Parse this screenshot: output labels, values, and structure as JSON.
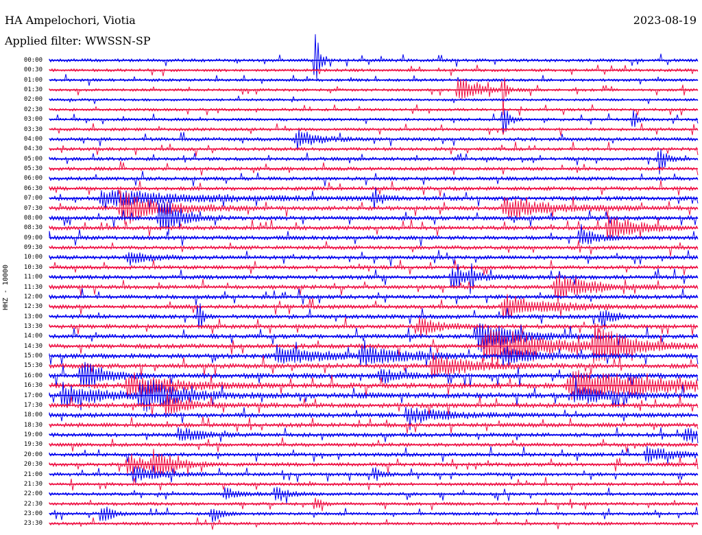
{
  "header": {
    "station": "HA Ampelochori, Viotia",
    "filter": "Applied filter: WWSSN-SP",
    "date": "2023-08-19",
    "channel": "HHZ - 10000"
  },
  "colors": {
    "even_trace": "#0000ee",
    "odd_trace": "#ee1144",
    "background": "#ffffff",
    "text": "#000000"
  },
  "rows": [
    {
      "time": "00:00",
      "level": 0.45
    },
    {
      "time": "00:30",
      "level": 0.35
    },
    {
      "time": "01:00",
      "level": 0.35
    },
    {
      "time": "01:30",
      "level": 0.3
    },
    {
      "time": "02:00",
      "level": 0.25
    },
    {
      "time": "02:30",
      "level": 0.3
    },
    {
      "time": "03:00",
      "level": 0.35
    },
    {
      "time": "03:30",
      "level": 0.45
    },
    {
      "time": "04:00",
      "level": 0.6
    },
    {
      "time": "04:30",
      "level": 0.55
    },
    {
      "time": "05:00",
      "level": 0.6
    },
    {
      "time": "05:30",
      "level": 0.6
    },
    {
      "time": "06:00",
      "level": 0.7
    },
    {
      "time": "06:30",
      "level": 0.75
    },
    {
      "time": "07:00",
      "level": 0.9
    },
    {
      "time": "07:30",
      "level": 0.95
    },
    {
      "time": "08:00",
      "level": 0.9
    },
    {
      "time": "08:30",
      "level": 0.85
    },
    {
      "time": "09:00",
      "level": 0.8
    },
    {
      "time": "09:30",
      "level": 0.75
    },
    {
      "time": "10:00",
      "level": 0.8
    },
    {
      "time": "10:30",
      "level": 0.75
    },
    {
      "time": "11:00",
      "level": 0.85
    },
    {
      "time": "11:30",
      "level": 0.85
    },
    {
      "time": "12:00",
      "level": 0.8
    },
    {
      "time": "12:30",
      "level": 0.85
    },
    {
      "time": "13:00",
      "level": 0.85
    },
    {
      "time": "13:30",
      "level": 0.9
    },
    {
      "time": "14:00",
      "level": 0.9
    },
    {
      "time": "14:30",
      "level": 1.0
    },
    {
      "time": "15:00",
      "level": 1.1
    },
    {
      "time": "15:30",
      "level": 1.1
    },
    {
      "time": "16:00",
      "level": 1.2
    },
    {
      "time": "16:30",
      "level": 1.3
    },
    {
      "time": "17:00",
      "level": 1.3
    },
    {
      "time": "17:30",
      "level": 1.1
    },
    {
      "time": "18:00",
      "level": 1.0
    },
    {
      "time": "18:30",
      "level": 0.9
    },
    {
      "time": "19:00",
      "level": 0.8
    },
    {
      "time": "19:30",
      "level": 0.7
    },
    {
      "time": "20:00",
      "level": 0.7
    },
    {
      "time": "20:30",
      "level": 0.75
    },
    {
      "time": "21:00",
      "level": 0.6
    },
    {
      "time": "21:30",
      "level": 0.5
    },
    {
      "time": "22:00",
      "level": 0.45
    },
    {
      "time": "22:30",
      "level": 0.5
    },
    {
      "time": "23:00",
      "level": 0.45
    },
    {
      "time": "23:30",
      "level": 0.4
    }
  ],
  "events": [
    {
      "row": 0,
      "t": 0.41,
      "amp": 55,
      "dur": 0.006
    },
    {
      "row": 3,
      "t": 0.63,
      "amp": 20,
      "dur": 0.03
    },
    {
      "row": 3,
      "t": 0.7,
      "amp": 35,
      "dur": 0.004
    },
    {
      "row": 6,
      "t": 0.7,
      "amp": 28,
      "dur": 0.008
    },
    {
      "row": 6,
      "t": 0.9,
      "amp": 16,
      "dur": 0.006
    },
    {
      "row": 8,
      "t": 0.38,
      "amp": 14,
      "dur": 0.03
    },
    {
      "row": 10,
      "t": 0.94,
      "amp": 18,
      "dur": 0.01
    },
    {
      "row": 14,
      "t": 0.08,
      "amp": 12,
      "dur": 0.12
    },
    {
      "row": 14,
      "t": 0.5,
      "amp": 16,
      "dur": 0.01
    },
    {
      "row": 15,
      "t": 0.11,
      "amp": 22,
      "dur": 0.06
    },
    {
      "row": 15,
      "t": 0.7,
      "amp": 14,
      "dur": 0.07
    },
    {
      "row": 16,
      "t": 0.17,
      "amp": 34,
      "dur": 0.025
    },
    {
      "row": 17,
      "t": 0.86,
      "amp": 18,
      "dur": 0.04
    },
    {
      "row": 18,
      "t": 0.82,
      "amp": 16,
      "dur": 0.02
    },
    {
      "row": 20,
      "t": 0.12,
      "amp": 10,
      "dur": 0.03
    },
    {
      "row": 22,
      "t": 0.62,
      "amp": 14,
      "dur": 0.03
    },
    {
      "row": 22,
      "t": 0.65,
      "amp": 30,
      "dur": 0.004
    },
    {
      "row": 23,
      "t": 0.78,
      "amp": 18,
      "dur": 0.05
    },
    {
      "row": 25,
      "t": 0.7,
      "amp": 16,
      "dur": 0.07
    },
    {
      "row": 26,
      "t": 0.23,
      "amp": 30,
      "dur": 0.006
    },
    {
      "row": 26,
      "t": 0.85,
      "amp": 12,
      "dur": 0.02
    },
    {
      "row": 27,
      "t": 0.57,
      "amp": 14,
      "dur": 0.03
    },
    {
      "row": 28,
      "t": 0.66,
      "amp": 24,
      "dur": 0.05
    },
    {
      "row": 29,
      "t": 0.67,
      "amp": 32,
      "dur": 0.08
    },
    {
      "row": 29,
      "t": 0.84,
      "amp": 28,
      "dur": 0.05
    },
    {
      "row": 30,
      "t": 0.35,
      "amp": 14,
      "dur": 0.06
    },
    {
      "row": 30,
      "t": 0.48,
      "amp": 14,
      "dur": 0.06
    },
    {
      "row": 30,
      "t": 0.7,
      "amp": 12,
      "dur": 0.05
    },
    {
      "row": 31,
      "t": 0.59,
      "amp": 18,
      "dur": 0.05
    },
    {
      "row": 32,
      "t": 0.05,
      "amp": 24,
      "dur": 0.03
    },
    {
      "row": 32,
      "t": 0.51,
      "amp": 10,
      "dur": 0.03
    },
    {
      "row": 33,
      "t": 0.12,
      "amp": 18,
      "dur": 0.06
    },
    {
      "row": 33,
      "t": 0.8,
      "amp": 18,
      "dur": 0.2
    },
    {
      "row": 34,
      "t": 0.02,
      "amp": 16,
      "dur": 0.06
    },
    {
      "row": 34,
      "t": 0.14,
      "amp": 26,
      "dur": 0.05
    },
    {
      "row": 34,
      "t": 0.81,
      "amp": 12,
      "dur": 0.05
    },
    {
      "row": 35,
      "t": 0.18,
      "amp": 16,
      "dur": 0.03
    },
    {
      "row": 36,
      "t": 0.55,
      "amp": 12,
      "dur": 0.05
    },
    {
      "row": 38,
      "t": 0.2,
      "amp": 12,
      "dur": 0.03
    },
    {
      "row": 38,
      "t": 0.98,
      "amp": 10,
      "dur": 0.02
    },
    {
      "row": 40,
      "t": 0.92,
      "amp": 10,
      "dur": 0.05
    },
    {
      "row": 41,
      "t": 0.12,
      "amp": 14,
      "dur": 0.04
    },
    {
      "row": 41,
      "t": 0.16,
      "amp": 18,
      "dur": 0.03
    },
    {
      "row": 42,
      "t": 0.13,
      "amp": 10,
      "dur": 0.04
    },
    {
      "row": 42,
      "t": 0.5,
      "amp": 12,
      "dur": 0.01
    },
    {
      "row": 44,
      "t": 0.27,
      "amp": 10,
      "dur": 0.02
    },
    {
      "row": 44,
      "t": 0.35,
      "amp": 10,
      "dur": 0.02
    },
    {
      "row": 45,
      "t": 0.41,
      "amp": 12,
      "dur": 0.01
    },
    {
      "row": 46,
      "t": 0.08,
      "amp": 14,
      "dur": 0.015
    },
    {
      "row": 46,
      "t": 0.25,
      "amp": 12,
      "dur": 0.015
    }
  ]
}
